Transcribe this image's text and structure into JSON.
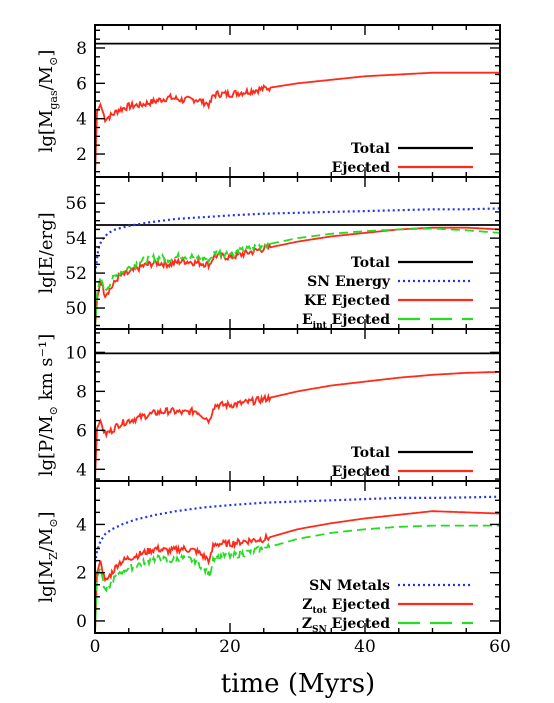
{
  "figure": {
    "xlabel": "time (Myrs)",
    "xlim": [
      0,
      60
    ],
    "xticks": [
      "0",
      "20",
      "40",
      "60"
    ]
  },
  "chart_data": [
    {
      "type": "line",
      "ylabel": "lg[M_gas/M_⊙]",
      "ylim": [
        0.7,
        9.3
      ],
      "yticks": [
        "2",
        "4",
        "6",
        "8"
      ],
      "grid": false,
      "legend": "bottom-right",
      "series": [
        {
          "name": "Total",
          "color": "#000000",
          "style": "solid",
          "x": [
            0,
            60
          ],
          "y": [
            8.25,
            8.25
          ]
        },
        {
          "name": "Ejected",
          "color": "#ff2a1a",
          "style": "solid",
          "x": [
            0,
            0.3,
            0.8,
            1.5,
            2.5,
            3.5,
            5,
            7,
            9,
            11,
            13,
            15,
            17,
            17.5,
            18,
            20,
            22,
            25,
            30,
            35,
            40,
            45,
            50,
            55,
            60
          ],
          "y": [
            0.7,
            4.4,
            4.8,
            4.0,
            4.2,
            4.5,
            4.7,
            4.8,
            5.0,
            5.2,
            5.05,
            5.1,
            4.8,
            5.3,
            5.4,
            5.4,
            5.5,
            5.7,
            6.0,
            6.2,
            6.4,
            6.5,
            6.6,
            6.6,
            6.6
          ]
        }
      ]
    },
    {
      "type": "line",
      "ylabel": "lg[E/erg]",
      "ylim": [
        48.8,
        57.5
      ],
      "yticks": [
        "50",
        "52",
        "54",
        "56"
      ],
      "grid": false,
      "legend": "bottom-right",
      "series": [
        {
          "name": "Total",
          "color": "#000000",
          "style": "solid",
          "x": [
            0,
            60
          ],
          "y": [
            54.75,
            54.75
          ]
        },
        {
          "name": "SN Energy",
          "color": "#2233ee",
          "style": "dotted",
          "x": [
            0,
            0.5,
            1,
            2,
            3,
            5,
            8,
            12,
            16,
            20,
            25,
            30,
            35,
            40,
            45,
            50,
            55,
            60
          ],
          "y": [
            52.0,
            53.4,
            53.9,
            54.3,
            54.5,
            54.7,
            54.9,
            55.1,
            55.2,
            55.3,
            55.4,
            55.45,
            55.5,
            55.55,
            55.6,
            55.65,
            55.65,
            55.7
          ]
        },
        {
          "name": "KE Ejected",
          "color": "#ff2a1a",
          "style": "solid",
          "x": [
            0,
            0.3,
            0.8,
            1.5,
            2.5,
            3.5,
            5,
            7,
            9,
            11,
            13,
            15,
            17,
            17.5,
            18,
            20,
            22,
            25,
            30,
            35,
            40,
            45,
            50,
            55,
            60
          ],
          "y": [
            48.8,
            50.5,
            51.5,
            50.8,
            51.2,
            51.8,
            52.0,
            52.4,
            52.6,
            52.5,
            52.7,
            52.6,
            52.5,
            52.9,
            53.0,
            52.9,
            53.1,
            53.4,
            53.8,
            54.1,
            54.3,
            54.5,
            54.6,
            54.6,
            54.5
          ]
        },
        {
          "name": "E_int Ejected",
          "color": "#22dd22",
          "style": "dashed",
          "x": [
            0,
            0.3,
            0.8,
            1.5,
            2.5,
            3.5,
            5,
            7,
            9,
            11,
            13,
            15,
            17,
            17.5,
            18,
            20,
            22,
            25,
            30,
            35,
            40,
            45,
            50,
            55,
            60
          ],
          "y": [
            48.8,
            50.8,
            51.8,
            51.0,
            51.6,
            52.0,
            52.3,
            52.7,
            52.9,
            52.8,
            53.0,
            52.9,
            52.8,
            53.1,
            53.2,
            53.1,
            53.3,
            53.6,
            54.0,
            54.25,
            54.4,
            54.5,
            54.55,
            54.45,
            54.3
          ]
        }
      ]
    },
    {
      "type": "line",
      "ylabel": "lg[P/M_⊙ km s⁻¹]",
      "ylim": [
        3.4,
        11.2
      ],
      "yticks": [
        "4",
        "6",
        "8",
        "10"
      ],
      "grid": false,
      "legend": "bottom-right",
      "series": [
        {
          "name": "Total",
          "color": "#000000",
          "style": "solid",
          "x": [
            0,
            60
          ],
          "y": [
            9.95,
            9.95
          ]
        },
        {
          "name": "Ejected",
          "color": "#ff2a1a",
          "style": "solid",
          "x": [
            0,
            0.3,
            0.8,
            1.5,
            2.5,
            3.5,
            5,
            7,
            9,
            11,
            13,
            15,
            17,
            17.5,
            18,
            20,
            22,
            25,
            30,
            35,
            40,
            45,
            50,
            55,
            60
          ],
          "y": [
            3.4,
            6.1,
            6.5,
            5.8,
            6.0,
            6.3,
            6.5,
            6.7,
            6.9,
            7.0,
            6.9,
            7.0,
            6.5,
            7.2,
            7.3,
            7.3,
            7.4,
            7.6,
            8.0,
            8.3,
            8.5,
            8.7,
            8.85,
            8.95,
            9.0
          ]
        }
      ]
    },
    {
      "type": "line",
      "ylabel": "lg[M_Z/M_⊙]",
      "ylim": [
        -0.5,
        5.8
      ],
      "yticks": [
        "0",
        "2",
        "4"
      ],
      "grid": false,
      "legend": "bottom-right",
      "series": [
        {
          "name": "SN Metals",
          "color": "#2233ee",
          "style": "dotted",
          "x": [
            0,
            0.3,
            0.8,
            1.5,
            2.5,
            4,
            6,
            9,
            12,
            16,
            20,
            25,
            30,
            35,
            40,
            45,
            50,
            55,
            60
          ],
          "y": [
            2.4,
            2.9,
            3.3,
            3.6,
            3.8,
            4.0,
            4.2,
            4.4,
            4.55,
            4.7,
            4.8,
            4.9,
            4.95,
            5.0,
            5.05,
            5.1,
            5.1,
            5.12,
            5.15
          ]
        },
        {
          "name": "Z_tot Ejected",
          "color": "#ff2a1a",
          "style": "solid",
          "x": [
            0,
            0.3,
            0.8,
            1.5,
            2.5,
            3.5,
            5,
            7,
            9,
            11,
            13,
            15,
            17,
            17.5,
            18,
            20,
            22,
            25,
            30,
            35,
            40,
            45,
            50,
            55,
            60
          ],
          "y": [
            -0.5,
            2.0,
            2.5,
            1.6,
            2.0,
            2.4,
            2.6,
            2.8,
            3.0,
            2.9,
            3.0,
            2.9,
            2.5,
            3.1,
            3.2,
            3.2,
            3.3,
            3.4,
            3.8,
            4.05,
            4.25,
            4.4,
            4.55,
            4.5,
            4.45
          ]
        },
        {
          "name": "Z_SN Ejected",
          "color": "#22dd22",
          "style": "dashed",
          "x": [
            0,
            0.3,
            0.8,
            1.5,
            2.5,
            3.5,
            5,
            7,
            9,
            11,
            13,
            15,
            17,
            17.5,
            18,
            20,
            22,
            25,
            30,
            35,
            40,
            45,
            50,
            55,
            60
          ],
          "y": [
            -0.5,
            1.8,
            2.2,
            1.2,
            1.6,
            2.0,
            2.2,
            2.4,
            2.6,
            2.5,
            2.6,
            2.5,
            1.9,
            2.6,
            2.7,
            2.7,
            2.8,
            3.0,
            3.4,
            3.65,
            3.8,
            3.9,
            3.95,
            3.95,
            3.95
          ]
        }
      ]
    }
  ]
}
